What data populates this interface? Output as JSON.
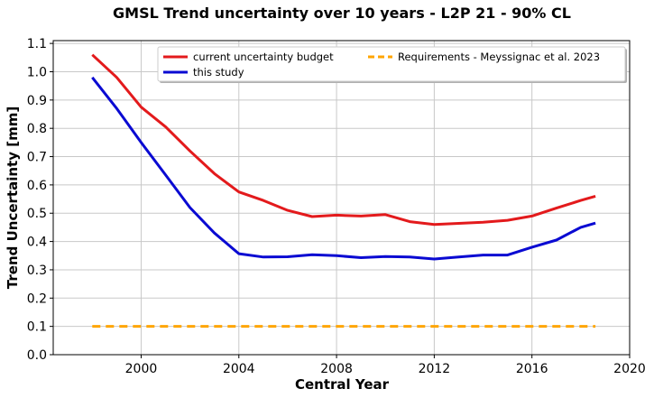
{
  "chart_data": {
    "type": "line",
    "title": "GMSL Trend uncertainty over 10 years - L2P 21 - 90% CL",
    "xlabel": "Central Year",
    "ylabel": "Trend Uncertainty [mm]",
    "xlim": [
      1996.4,
      2020
    ],
    "ylim": [
      0,
      1.11
    ],
    "xticks": [
      2000,
      2004,
      2008,
      2012,
      2016,
      2020
    ],
    "yticks": [
      0.0,
      0.1,
      0.2,
      0.3,
      0.4,
      0.5,
      0.6,
      0.7,
      0.8,
      0.9,
      1.0,
      1.1
    ],
    "xtick_labels": [
      "2000",
      "2004",
      "2008",
      "2012",
      "2016",
      "2020"
    ],
    "ytick_labels": [
      "0.0",
      "0.1",
      "0.2",
      "0.3",
      "0.4",
      "0.5",
      "0.6",
      "0.7",
      "0.8",
      "0.9",
      "1.0",
      "1.1"
    ],
    "grid": true,
    "legend": "top-right",
    "series": [
      {
        "name": "current uncertainty budget",
        "color": "#e31a1c",
        "style": "solid",
        "x": [
          1998.0,
          1999.0,
          2000.0,
          2001.0,
          2002.0,
          2003.0,
          2004.0,
          2005.0,
          2006.0,
          2007.0,
          2008.0,
          2009.0,
          2010.0,
          2011.0,
          2012.0,
          2013.0,
          2014.0,
          2015.0,
          2016.0,
          2017.0,
          2018.0,
          2018.6
        ],
        "values": [
          1.06,
          0.98,
          0.875,
          0.805,
          0.72,
          0.64,
          0.575,
          0.545,
          0.51,
          0.488,
          0.493,
          0.49,
          0.495,
          0.47,
          0.46,
          0.464,
          0.468,
          0.475,
          0.49,
          0.518,
          0.545,
          0.56
        ]
      },
      {
        "name": "this study",
        "color": "#0a0ad2",
        "style": "solid",
        "x": [
          1998.0,
          1999.0,
          2000.0,
          2001.0,
          2002.0,
          2003.0,
          2004.0,
          2005.0,
          2006.0,
          2007.0,
          2008.0,
          2009.0,
          2010.0,
          2011.0,
          2012.0,
          2013.0,
          2014.0,
          2015.0,
          2016.0,
          2017.0,
          2018.0,
          2018.6
        ],
        "values": [
          0.98,
          0.87,
          0.75,
          0.635,
          0.52,
          0.43,
          0.357,
          0.345,
          0.346,
          0.353,
          0.35,
          0.343,
          0.347,
          0.345,
          0.338,
          0.345,
          0.352,
          0.352,
          0.38,
          0.405,
          0.45,
          0.465
        ]
      },
      {
        "name": "Requirements - Meyssignac et al. 2023",
        "color": "#ffa500",
        "style": "dashed",
        "x": [
          1998.0,
          2018.6
        ],
        "values": [
          0.1,
          0.1
        ]
      }
    ]
  }
}
